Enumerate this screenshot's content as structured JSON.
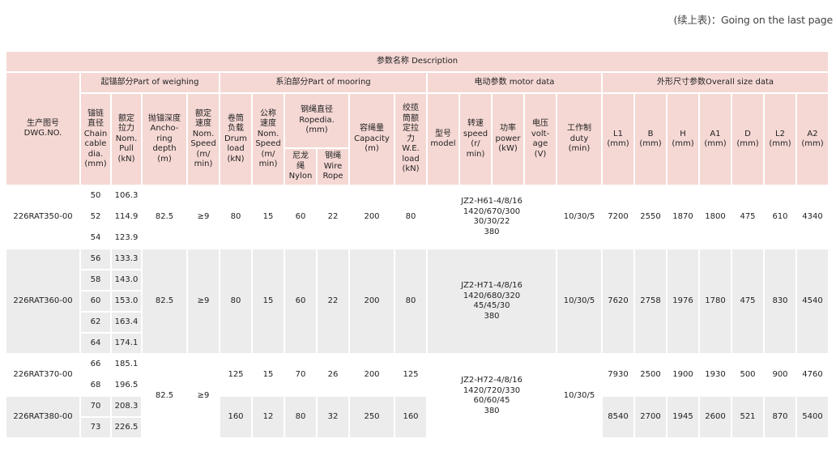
{
  "note": "(续上表)：Going on the last page",
  "table": {
    "description": "参数名称  Description",
    "dwg": "生产图号\nDWG.NO.",
    "group_weighing": "起锚部分Part of weighing",
    "group_mooring": "系泊部分Part of mooring",
    "group_motor": "电动参数 motor data",
    "group_size": "外形尺寸参数Overall size data",
    "h_chain": "锚链\n直径\nChain\ncable\ndia.\n(mm)",
    "h_pull": "额定\n拉力\nNom.\nPull\n(kN)",
    "h_depth": "抛锚深度\nAncho-\nring\ndepth\n(m)",
    "h_speed": "额定\n速度\nNom.\nSpeed\n(m/\nmin)",
    "h_drum": "卷筒\n负载\nDrum\nload\n(kN)",
    "h_mspeed": "公称\n速度\nNom.\nSpeed\n(m/\nmin)",
    "h_rope": "钢绳直径\nRopedia.\n(mm)",
    "h_nylon": "尼龙\n绳\nNylon",
    "h_wire": "钢绳\nWire\nRope",
    "h_capacity": "容绳量\nCapacity\n(m)",
    "h_we": "绞揽\n筒额\n定拉\n力\nW.E.\nload\n(kN)",
    "h_model": "型号\nmodel",
    "h_rspeed": "转速\nspeed\n(r/\nmin)",
    "h_power": "功率\npower\n(kW)",
    "h_volt": "电压\nvolt-\nage\n(V)",
    "h_duty": "工作制\nduty\n(min)",
    "h_L1": "L1\n(mm)",
    "h_B": "B\n(mm)",
    "h_H": "H\n(mm)",
    "h_A1": "A1\n(mm)",
    "h_D": "D\n(mm)",
    "h_L2": "L2\n(mm)",
    "h_A2": "A2\n(mm)",
    "r350": {
      "dwg": "226RAT350-00",
      "chain": [
        "50",
        "52",
        "54"
      ],
      "pull": [
        "106.3",
        "114.9",
        "123.9"
      ],
      "depth": "82.5",
      "speed": "≥9",
      "drum": "80",
      "mspeed": "15",
      "nylon": "60",
      "wire": "22",
      "capacity": "200",
      "we": "80",
      "motor": "JZ2-H61-4/8/16\n1420/670/300\n30/30/22\n380",
      "duty": "10/30/5",
      "L1": "7200",
      "B": "2550",
      "H": "1870",
      "A1": "1800",
      "D": "475",
      "L2": "610",
      "A2": "4340"
    },
    "r360": {
      "dwg": "226RAT360-00",
      "chain": [
        "56",
        "58",
        "60",
        "62",
        "64"
      ],
      "pull": [
        "133.3",
        "143.0",
        "153.0",
        "163.4",
        "174.1"
      ],
      "depth": "82.5",
      "speed": "≥9",
      "drum": "80",
      "mspeed": "15",
      "nylon": "60",
      "wire": "22",
      "capacity": "200",
      "we": "80",
      "motor": "JZ2-H71-4/8/16\n1420/680/320\n45/45/30\n380",
      "duty": "10/30/5",
      "L1": "7620",
      "B": "2758",
      "H": "1976",
      "A1": "1780",
      "D": "475",
      "L2": "830",
      "A2": "4540"
    },
    "r370": {
      "dwg": "226RAT370-00",
      "chain": [
        "66",
        "68"
      ],
      "pull": [
        "185.1",
        "196.5"
      ],
      "drum": "125",
      "mspeed": "15",
      "nylon": "70",
      "wire": "26",
      "capacity": "200",
      "we": "125",
      "L1": "7930",
      "B": "2500",
      "H": "1900",
      "A1": "1930",
      "D": "500",
      "L2": "900",
      "A2": "4760"
    },
    "r380": {
      "dwg": "226RAT380-00",
      "chain": [
        "70",
        "73"
      ],
      "pull": [
        "208.3",
        "226.5"
      ],
      "drum": "160",
      "mspeed": "12",
      "nylon": "80",
      "wire": "32",
      "capacity": "250",
      "we": "160",
      "L1": "8540",
      "B": "2700",
      "H": "1945",
      "A1": "2600",
      "D": "521",
      "L2": "870",
      "A2": "5400"
    },
    "shared_370_380": {
      "depth": "82.5",
      "speed": "≥9",
      "motor": "JZ2-H72-4/8/16\n1420/720/330\n60/60/45\n380",
      "duty": "10/30/5"
    }
  }
}
